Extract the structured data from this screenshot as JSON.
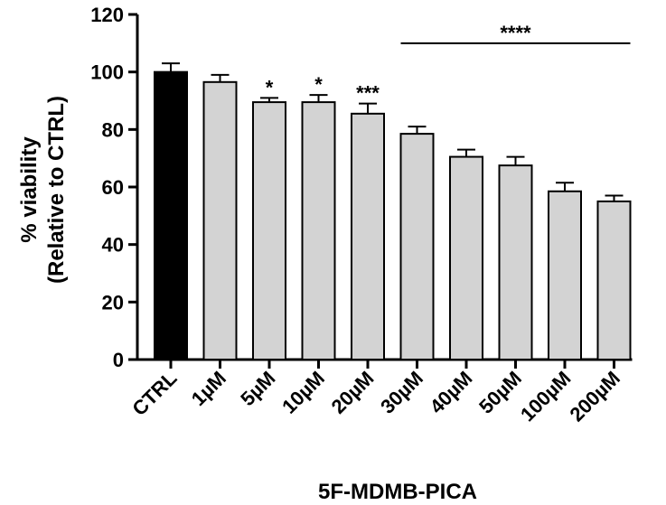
{
  "chart_data": {
    "type": "bar",
    "title": "",
    "xlabel": "5F-MDMB-PICA",
    "ylabel_line1": "% viability",
    "ylabel_line2": "(Relative to CTRL)",
    "ylim": [
      0,
      120
    ],
    "yticks": [
      "0",
      "20",
      "40",
      "60",
      "80",
      "100",
      "120"
    ],
    "categories": [
      "CTRL",
      "1µM",
      "5µM",
      "10µM",
      "20µM",
      "30µM",
      "40µM",
      "50µM",
      "100µM",
      "200µM"
    ],
    "values": [
      100,
      96.5,
      89.5,
      89.5,
      85.5,
      78.5,
      70.5,
      67.5,
      58.5,
      55
    ],
    "errors": [
      3,
      2.5,
      1.5,
      2.5,
      3.5,
      2.5,
      2.5,
      3,
      3,
      2
    ],
    "bar_colors": [
      "#000000",
      "#d3d3d3",
      "#d3d3d3",
      "#d3d3d3",
      "#d3d3d3",
      "#d3d3d3",
      "#d3d3d3",
      "#d3d3d3",
      "#d3d3d3",
      "#d3d3d3"
    ],
    "significance": [
      {
        "index": 2,
        "label": "*"
      },
      {
        "index": 3,
        "label": "*"
      },
      {
        "index": 4,
        "label": "***"
      }
    ],
    "significance_bracket": {
      "from_index": 5,
      "to_index": 9,
      "value": 110,
      "label": "****"
    },
    "grid": false,
    "legend": "none"
  }
}
